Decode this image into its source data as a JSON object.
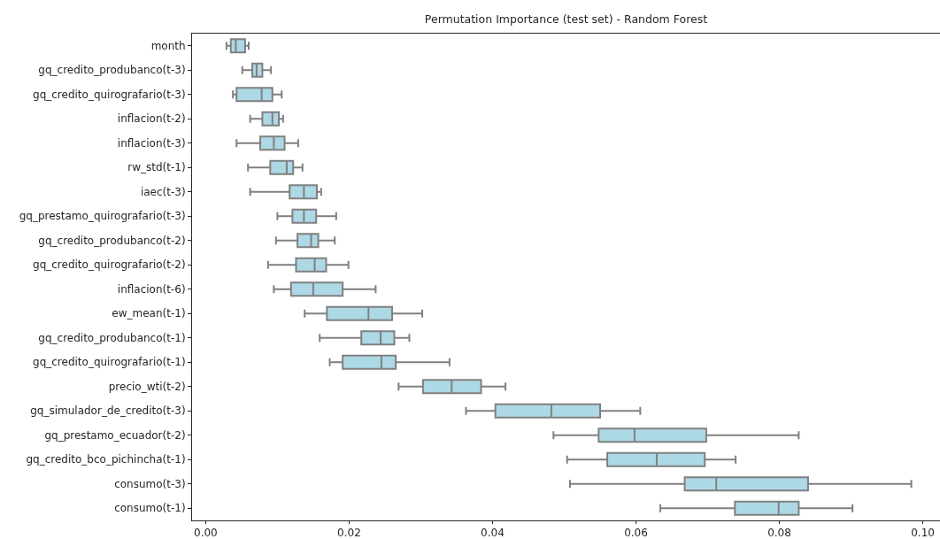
{
  "chart_data": {
    "type": "box",
    "title": "Permutation Importance (test set) - Random Forest",
    "orientation": "horizontal",
    "color": "#add8e6",
    "grid": false,
    "categories": [
      "month",
      "gq_credito_produbanco(t-3)",
      "gq_credito_quirografario(t-3)",
      "inflacion(t-2)",
      "inflacion(t-3)",
      "rw_std(t-1)",
      "iaec(t-3)",
      "gq_prestamo_quirografario(t-3)",
      "gq_credito_produbanco(t-2)",
      "gq_credito_quirografario(t-2)",
      "inflacion(t-6)",
      "ew_mean(t-1)",
      "gq_credito_produbanco(t-1)",
      "gq_credito_quirografario(t-1)",
      "precio_wti(t-2)",
      "gq_simulador_de_credito(t-3)",
      "gq_prestamo_ecuador(t-2)",
      "gq_credito_bco_pichincha(t-1)",
      "consumo(t-3)",
      "consumo(t-1)"
    ],
    "boxes": [
      {
        "low": 0.0029,
        "q1": 0.0035,
        "median": 0.0042,
        "q3": 0.0055,
        "high": 0.006
      },
      {
        "low": 0.0051,
        "q1": 0.0065,
        "median": 0.0071,
        "q3": 0.0079,
        "high": 0.0091
      },
      {
        "low": 0.0038,
        "q1": 0.0043,
        "median": 0.0078,
        "q3": 0.0093,
        "high": 0.0106
      },
      {
        "low": 0.0062,
        "q1": 0.0079,
        "median": 0.0093,
        "q3": 0.0102,
        "high": 0.0108
      },
      {
        "low": 0.0043,
        "q1": 0.0076,
        "median": 0.0095,
        "q3": 0.011,
        "high": 0.0129
      },
      {
        "low": 0.0059,
        "q1": 0.009,
        "median": 0.0113,
        "q3": 0.0122,
        "high": 0.0135
      },
      {
        "low": 0.0062,
        "q1": 0.0117,
        "median": 0.0137,
        "q3": 0.0155,
        "high": 0.0161
      },
      {
        "low": 0.01,
        "q1": 0.0121,
        "median": 0.0137,
        "q3": 0.0154,
        "high": 0.0182
      },
      {
        "low": 0.0098,
        "q1": 0.0128,
        "median": 0.0147,
        "q3": 0.0157,
        "high": 0.018
      },
      {
        "low": 0.0087,
        "q1": 0.0126,
        "median": 0.0152,
        "q3": 0.0168,
        "high": 0.0199
      },
      {
        "low": 0.0095,
        "q1": 0.0119,
        "median": 0.015,
        "q3": 0.0191,
        "high": 0.0237
      },
      {
        "low": 0.0138,
        "q1": 0.0169,
        "median": 0.0227,
        "q3": 0.026,
        "high": 0.0302
      },
      {
        "low": 0.0159,
        "q1": 0.0217,
        "median": 0.0244,
        "q3": 0.0263,
        "high": 0.0284
      },
      {
        "low": 0.0173,
        "q1": 0.0191,
        "median": 0.0245,
        "q3": 0.0265,
        "high": 0.034
      },
      {
        "low": 0.0269,
        "q1": 0.0303,
        "median": 0.0343,
        "q3": 0.0384,
        "high": 0.0418
      },
      {
        "low": 0.0363,
        "q1": 0.0404,
        "median": 0.0482,
        "q3": 0.055,
        "high": 0.0606
      },
      {
        "low": 0.0485,
        "q1": 0.0548,
        "median": 0.0598,
        "q3": 0.0698,
        "high": 0.0827
      },
      {
        "low": 0.0504,
        "q1": 0.056,
        "median": 0.0629,
        "q3": 0.0696,
        "high": 0.0739
      },
      {
        "low": 0.0508,
        "q1": 0.0668,
        "median": 0.0712,
        "q3": 0.084,
        "high": 0.0984
      },
      {
        "low": 0.0634,
        "q1": 0.0738,
        "median": 0.0799,
        "q3": 0.0827,
        "high": 0.0902
      }
    ],
    "xlim": [
      -0.0019,
      0.1024
    ],
    "xticks": [
      {
        "value": 0,
        "label": "0.00"
      },
      {
        "value": 0.02,
        "label": "0.02"
      },
      {
        "value": 0.04,
        "label": "0.04"
      },
      {
        "value": 0.06,
        "label": "0.06"
      },
      {
        "value": 0.08,
        "label": "0.08"
      },
      {
        "value": 0.1,
        "label": "0.10"
      }
    ]
  }
}
